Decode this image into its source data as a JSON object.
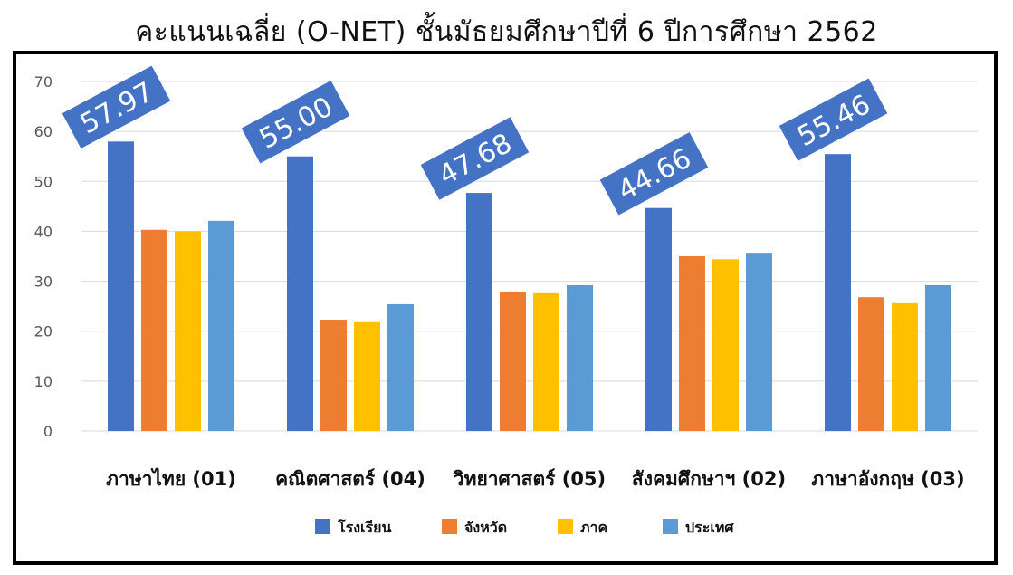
{
  "chart_data": {
    "type": "bar",
    "title": "คะแนนเฉลี่ย (O-NET) ชั้นมัธยมศึกษาปีที่ 6 ปีการศึกษา 2562",
    "categories": [
      "ภาษาไทย (01)",
      "คณิตศาสตร์ (04)",
      "วิทยาศาสตร์ (05)",
      "สังคมศึกษาฯ (02)",
      "ภาษาอังกฤษ (03)"
    ],
    "series": [
      {
        "name": "โรงเรียน",
        "values": [
          57.97,
          55.0,
          47.68,
          44.66,
          55.46
        ],
        "color": "#4472C4"
      },
      {
        "name": "จังหวัด",
        "values": [
          40.3,
          22.3,
          27.8,
          35.0,
          26.8
        ],
        "color": "#ED7D31"
      },
      {
        "name": "ภาค",
        "values": [
          40.0,
          21.8,
          27.6,
          34.4,
          25.6
        ],
        "color": "#FFC000"
      },
      {
        "name": "ประเทศ",
        "values": [
          42.1,
          25.4,
          29.2,
          35.7,
          29.2
        ],
        "color": "#5B9BD5"
      }
    ],
    "callouts": [
      "57.97",
      "55.00",
      "47.68",
      "44.66",
      "55.46"
    ],
    "callout_color": "#4472C4",
    "yticks": [
      "0",
      "10",
      "20",
      "30",
      "40",
      "50",
      "60",
      "70"
    ],
    "ylim": [
      0,
      70
    ],
    "grid": true,
    "legend_position": "bottom"
  }
}
